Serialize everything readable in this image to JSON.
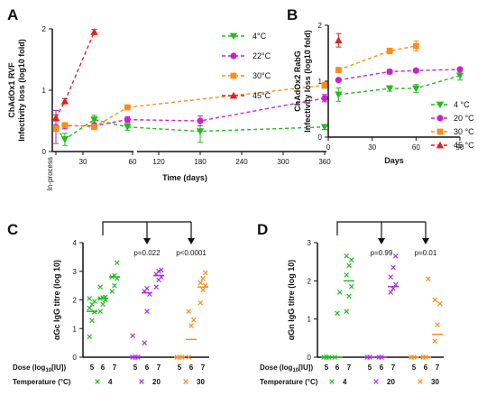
{
  "chart_data": [
    {
      "panel": "A",
      "type": "scatter",
      "ylabel_line1": "ChAdOx1 RVF",
      "ylabel_line2": "Infectivity loss (log10 fold)",
      "xlabel": "Time (days)",
      "ylim": [
        0,
        2
      ],
      "yticks": [
        "0",
        "1",
        "2"
      ],
      "xticks_left": [
        "In-process",
        "30",
        "60"
      ],
      "xticks_right": [
        "120",
        "180",
        "240",
        "300",
        "360"
      ],
      "x_break": [
        60,
        90
      ],
      "series": [
        {
          "name": "4°C",
          "color": "#22bb22",
          "marker": "tri-down",
          "x": [
            0,
            7,
            30,
            56,
            180,
            360
          ],
          "y": [
            0.38,
            0.2,
            0.52,
            0.4,
            0.33,
            0.4
          ],
          "err": [
            0.05,
            0.1,
            0.07,
            0.05,
            0.18,
            0.04
          ]
        },
        {
          "name": "22°C",
          "color": "#cc22cc",
          "marker": "circle",
          "x": [
            0,
            7,
            30,
            56,
            180,
            360
          ],
          "y": [
            0.4,
            0.42,
            0.42,
            0.52,
            0.5,
            0.87
          ],
          "err": [
            0.27,
            0.05,
            0.05,
            0.05,
            0.08,
            0.06
          ]
        },
        {
          "name": "30°C",
          "color": "#ff8c1a",
          "marker": "square",
          "x": [
            0,
            7,
            30,
            56,
            360
          ],
          "y": [
            0.38,
            0.43,
            0.4,
            0.72,
            1.08
          ],
          "err": [
            0.04,
            0.03,
            0.03,
            0.03,
            0.05
          ]
        },
        {
          "name": "45°C",
          "color": "#dd2222",
          "marker": "tri-up",
          "x": [
            0,
            7,
            30
          ],
          "y": [
            0.55,
            0.82,
            1.95
          ],
          "err": [
            0.05,
            0.04,
            0.04
          ]
        }
      ]
    },
    {
      "panel": "B",
      "type": "scatter",
      "ylabel_line1": "ChAdOx2 RabG",
      "ylabel_line2": "Infectivity loss (log10 fold)",
      "xlabel": "Days",
      "xlim": [
        0,
        90
      ],
      "ylim": [
        0,
        2
      ],
      "xticks": [
        "0",
        "30",
        "60",
        "90"
      ],
      "yticks": [
        "0",
        "1",
        "2"
      ],
      "series": [
        {
          "name": "4 °C",
          "color": "#22bb22",
          "marker": "tri-down",
          "x": [
            7,
            42,
            60,
            90
          ],
          "y": [
            0.76,
            0.87,
            0.87,
            1.1
          ],
          "err": [
            0.12,
            0.05,
            0.07,
            0.08
          ]
        },
        {
          "name": "20 °C",
          "color": "#cc22cc",
          "marker": "circle",
          "x": [
            7,
            42,
            60,
            90
          ],
          "y": [
            1.02,
            1.17,
            1.19,
            1.21
          ],
          "err": [
            0.03,
            0.04,
            0.03,
            0.03
          ]
        },
        {
          "name": "30 °C",
          "color": "#ff8c1a",
          "marker": "square",
          "x": [
            7,
            42,
            60
          ],
          "y": [
            1.2,
            1.54,
            1.63
          ],
          "err": [
            0.04,
            0.05,
            0.09
          ]
        },
        {
          "name": "45 °C",
          "color": "#dd2222",
          "marker": "tri-up",
          "x": [
            7
          ],
          "y": [
            1.73
          ],
          "err": [
            0.12
          ]
        }
      ]
    },
    {
      "panel": "C",
      "type": "scatter",
      "ylabel": "αGc IgG titre (log 10)",
      "ylim": [
        0,
        4
      ],
      "yticks": [
        "0",
        "1",
        "2",
        "3",
        "4"
      ],
      "dose_label": "Dose (log10[IU])",
      "temp_label": "Temperature (°C)",
      "groups": [
        {
          "temp": "4",
          "color": "#22bb22",
          "cols": [
            {
              "dose": "5",
              "points": [
                0.72,
                1.28,
                1.58,
                1.72,
                1.85,
                1.95,
                2.05
              ],
              "mean": 1.6
            },
            {
              "dose": "6",
              "points": [
                1.6,
                1.85,
                2.0,
                2.05,
                2.08,
                2.1,
                2.45
              ],
              "mean": 2.05
            },
            {
              "dose": "7",
              "points": [
                2.3,
                2.5,
                2.75,
                2.8,
                2.85,
                3.3
              ],
              "mean": 2.8
            }
          ]
        },
        {
          "temp": "20",
          "color": "#aa33dd",
          "cols": [
            {
              "dose": "5",
              "points": [
                0.0,
                0.0,
                0.0,
                0.75
              ],
              "mean": 0.02
            },
            {
              "dose": "6",
              "points": [
                0.5,
                1.6,
                2.2,
                2.3,
                2.4
              ],
              "mean": 2.25
            },
            {
              "dose": "7",
              "points": [
                2.45,
                2.7,
                2.8,
                2.9,
                3.0,
                3.05
              ],
              "mean": 2.85
            }
          ]
        },
        {
          "temp": "30",
          "color": "#ff8c1a",
          "cols": [
            {
              "dose": "5",
              "points": [
                0.0,
                0.0,
                0.0
              ],
              "mean": 0.0
            },
            {
              "dose": "6",
              "points": [
                0.0,
                1.1,
                1.3,
                1.6
              ],
              "mean": 0.62
            },
            {
              "dose": "7",
              "points": [
                1.9,
                2.35,
                2.5,
                2.6,
                2.75,
                2.95
              ],
              "mean": 2.45
            }
          ]
        }
      ],
      "annotations": [
        "p=0.022",
        "p<0.0001"
      ]
    },
    {
      "panel": "D",
      "type": "scatter",
      "ylabel": "αGn IgG titre (log 10)",
      "ylim": [
        0,
        3
      ],
      "yticks": [
        "0",
        "1",
        "2",
        "3"
      ],
      "dose_label": "Dose (log10[IU])",
      "temp_label": "Temperature (°C)",
      "groups": [
        {
          "temp": "4",
          "color": "#22bb22",
          "cols": [
            {
              "dose": "5",
              "points": [
                0.0,
                0.0,
                0.0
              ],
              "mean": 0.0
            },
            {
              "dose": "6",
              "points": [
                0.0,
                1.15,
                1.7
              ],
              "mean": 0.0
            },
            {
              "dose": "7",
              "points": [
                1.2,
                1.6,
                1.85,
                2.15,
                2.4,
                2.55,
                2.65
              ],
              "mean": 2.0
            }
          ]
        },
        {
          "temp": "20",
          "color": "#aa33dd",
          "cols": [
            {
              "dose": "5",
              "points": [
                0.0,
                0.0
              ],
              "mean": 0.0
            },
            {
              "dose": "6",
              "points": [
                0.0,
                0.0
              ],
              "mean": 0.0
            },
            {
              "dose": "7",
              "points": [
                1.7,
                1.8,
                1.9,
                2.1,
                2.35,
                2.65
              ],
              "mean": 1.85
            }
          ]
        },
        {
          "temp": "30",
          "color": "#ff8c1a",
          "cols": [
            {
              "dose": "5",
              "points": [
                0.0,
                0.0
              ],
              "mean": 0.0
            },
            {
              "dose": "6",
              "points": [
                0.0,
                0.0,
                2.05
              ],
              "mean": 0.0
            },
            {
              "dose": "7",
              "points": [
                0.42,
                0.85,
                1.4,
                1.5
              ],
              "mean": 0.6
            }
          ]
        }
      ],
      "annotations": [
        "p=0.99",
        "p=0.01"
      ]
    }
  ]
}
